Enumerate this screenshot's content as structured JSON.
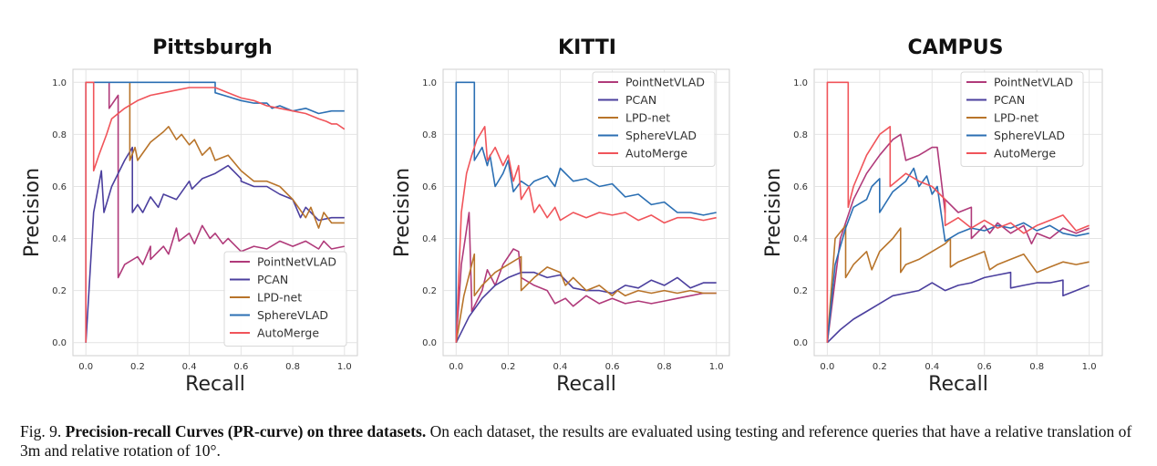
{
  "caption": {
    "label": "Fig. 9.",
    "title": "Precision-recall Curves (PR-curve) on three datasets.",
    "body": "On each dataset, the results are evaluated using testing and reference queries that have a relative translation of 3m and relative rotation of 10°."
  },
  "colors": {
    "PointNetVLAD": "#b03a7a",
    "PCAN": "#4b3f9e",
    "LPD-net": "#b8742a",
    "SphereVLAD": "#2b6fb3",
    "AutoMerge": "#f0545a"
  },
  "chart_data": [
    {
      "type": "line",
      "title": "Pittsburgh",
      "xlabel": "Recall",
      "ylabel": "Precision",
      "xlim": [
        0,
        1
      ],
      "ylim": [
        0,
        1
      ],
      "xticks": [
        "0.0",
        "0.2",
        "0.4",
        "0.6",
        "0.8",
        "1.0"
      ],
      "yticks": [
        "0.0",
        "0.2",
        "0.4",
        "0.6",
        "0.8",
        "1.0"
      ],
      "grid": true,
      "legend": "bottom-right",
      "series": [
        {
          "name": "PointNetVLAD",
          "x": [
            0.09,
            0.09,
            0.125,
            0.125,
            0.15,
            0.2,
            0.22,
            0.25,
            0.25,
            0.3,
            0.32,
            0.35,
            0.36,
            0.4,
            0.42,
            0.45,
            0.48,
            0.5,
            0.53,
            0.55,
            0.6,
            0.65,
            0.7,
            0.75,
            0.8,
            0.85,
            0.9,
            0.92,
            0.95,
            1.0
          ],
          "y": [
            1.0,
            0.9,
            0.95,
            0.25,
            0.3,
            0.33,
            0.3,
            0.37,
            0.32,
            0.37,
            0.34,
            0.44,
            0.39,
            0.42,
            0.38,
            0.45,
            0.4,
            0.42,
            0.38,
            0.4,
            0.35,
            0.37,
            0.36,
            0.39,
            0.37,
            0.39,
            0.36,
            0.39,
            0.36,
            0.37
          ]
        },
        {
          "name": "PCAN",
          "x": [
            0.0,
            0.03,
            0.06,
            0.07,
            0.1,
            0.15,
            0.18,
            0.18,
            0.2,
            0.22,
            0.25,
            0.28,
            0.3,
            0.35,
            0.4,
            0.41,
            0.45,
            0.5,
            0.55,
            0.6,
            0.6,
            0.65,
            0.7,
            0.75,
            0.8,
            0.83,
            0.85,
            0.9,
            0.95,
            1.0
          ],
          "y": [
            0.0,
            0.5,
            0.66,
            0.5,
            0.6,
            0.7,
            0.75,
            0.5,
            0.53,
            0.5,
            0.56,
            0.52,
            0.57,
            0.55,
            0.62,
            0.59,
            0.63,
            0.65,
            0.68,
            0.63,
            0.62,
            0.6,
            0.6,
            0.57,
            0.55,
            0.48,
            0.52,
            0.47,
            0.48,
            0.48
          ]
        },
        {
          "name": "LPD-net",
          "x": [
            0.17,
            0.17,
            0.19,
            0.2,
            0.25,
            0.3,
            0.32,
            0.35,
            0.37,
            0.4,
            0.42,
            0.45,
            0.48,
            0.5,
            0.55,
            0.6,
            0.65,
            0.7,
            0.75,
            0.8,
            0.85,
            0.87,
            0.9,
            0.92,
            0.95,
            1.0
          ],
          "y": [
            1.0,
            0.7,
            0.75,
            0.7,
            0.77,
            0.81,
            0.83,
            0.78,
            0.8,
            0.76,
            0.78,
            0.72,
            0.75,
            0.7,
            0.72,
            0.66,
            0.62,
            0.62,
            0.6,
            0.55,
            0.48,
            0.52,
            0.44,
            0.5,
            0.46,
            0.46
          ]
        },
        {
          "name": "SphereVLAD",
          "x": [
            0.0,
            0.0,
            0.5,
            0.5,
            0.6,
            0.65,
            0.7,
            0.72,
            0.75,
            0.8,
            0.85,
            0.9,
            0.95,
            1.0
          ],
          "y": [
            0.0,
            1.0,
            1.0,
            0.96,
            0.93,
            0.92,
            0.92,
            0.9,
            0.91,
            0.89,
            0.9,
            0.88,
            0.89,
            0.89
          ]
        },
        {
          "name": "AutoMerge",
          "x": [
            0.0,
            0.0,
            0.03,
            0.03,
            0.05,
            0.08,
            0.1,
            0.15,
            0.2,
            0.25,
            0.3,
            0.35,
            0.4,
            0.45,
            0.5,
            0.55,
            0.6,
            0.65,
            0.7,
            0.75,
            0.8,
            0.85,
            0.9,
            0.93,
            0.95,
            0.97,
            1.0
          ],
          "y": [
            0.0,
            1.0,
            1.0,
            0.66,
            0.72,
            0.8,
            0.86,
            0.9,
            0.93,
            0.95,
            0.96,
            0.97,
            0.98,
            0.98,
            0.98,
            0.96,
            0.94,
            0.93,
            0.91,
            0.9,
            0.89,
            0.88,
            0.86,
            0.85,
            0.84,
            0.84,
            0.82
          ]
        }
      ]
    },
    {
      "type": "line",
      "title": "KITTI",
      "xlabel": "Recall",
      "ylabel": "Precision",
      "xlim": [
        0,
        1
      ],
      "ylim": [
        0,
        1
      ],
      "xticks": [
        "0.0",
        "0.2",
        "0.4",
        "0.6",
        "0.8",
        "1.0"
      ],
      "yticks": [
        "0.0",
        "0.2",
        "0.4",
        "0.6",
        "0.8",
        "1.0"
      ],
      "grid": true,
      "legend": "top-right",
      "series": [
        {
          "name": "PointNetVLAD",
          "x": [
            0.0,
            0.02,
            0.05,
            0.06,
            0.06,
            0.1,
            0.12,
            0.15,
            0.18,
            0.22,
            0.24,
            0.25,
            0.3,
            0.35,
            0.38,
            0.42,
            0.45,
            0.5,
            0.55,
            0.6,
            0.65,
            0.7,
            0.75,
            0.8,
            0.85,
            0.9,
            0.95,
            1.0
          ],
          "y": [
            0.0,
            0.3,
            0.5,
            0.15,
            0.12,
            0.2,
            0.28,
            0.22,
            0.3,
            0.36,
            0.35,
            0.25,
            0.22,
            0.2,
            0.15,
            0.17,
            0.14,
            0.18,
            0.15,
            0.17,
            0.15,
            0.16,
            0.15,
            0.16,
            0.17,
            0.18,
            0.19,
            0.19
          ]
        },
        {
          "name": "PCAN",
          "x": [
            0.0,
            0.05,
            0.1,
            0.15,
            0.2,
            0.25,
            0.3,
            0.35,
            0.4,
            0.45,
            0.5,
            0.55,
            0.6,
            0.65,
            0.7,
            0.75,
            0.8,
            0.85,
            0.9,
            0.95,
            1.0
          ],
          "y": [
            0.0,
            0.1,
            0.17,
            0.22,
            0.25,
            0.27,
            0.27,
            0.25,
            0.26,
            0.21,
            0.2,
            0.2,
            0.19,
            0.22,
            0.21,
            0.24,
            0.22,
            0.25,
            0.21,
            0.23,
            0.23
          ]
        },
        {
          "name": "LPD-net",
          "x": [
            0.0,
            0.03,
            0.07,
            0.07,
            0.1,
            0.15,
            0.2,
            0.25,
            0.25,
            0.3,
            0.35,
            0.4,
            0.42,
            0.45,
            0.5,
            0.55,
            0.6,
            0.62,
            0.65,
            0.7,
            0.75,
            0.8,
            0.85,
            0.9,
            0.95,
            1.0
          ],
          "y": [
            0.0,
            0.18,
            0.34,
            0.18,
            0.22,
            0.27,
            0.3,
            0.33,
            0.2,
            0.25,
            0.29,
            0.27,
            0.22,
            0.25,
            0.2,
            0.22,
            0.18,
            0.2,
            0.18,
            0.2,
            0.19,
            0.2,
            0.19,
            0.2,
            0.19,
            0.19
          ]
        },
        {
          "name": "SphereVLAD",
          "x": [
            0.0,
            0.0,
            0.07,
            0.07,
            0.1,
            0.12,
            0.13,
            0.15,
            0.18,
            0.2,
            0.22,
            0.25,
            0.28,
            0.3,
            0.35,
            0.38,
            0.4,
            0.45,
            0.5,
            0.55,
            0.6,
            0.65,
            0.7,
            0.75,
            0.8,
            0.85,
            0.9,
            0.95,
            1.0
          ],
          "y": [
            0.0,
            1.0,
            1.0,
            0.7,
            0.75,
            0.68,
            0.72,
            0.6,
            0.65,
            0.7,
            0.58,
            0.62,
            0.6,
            0.62,
            0.64,
            0.6,
            0.67,
            0.62,
            0.63,
            0.6,
            0.61,
            0.56,
            0.57,
            0.53,
            0.54,
            0.5,
            0.5,
            0.49,
            0.5
          ]
        },
        {
          "name": "AutoMerge",
          "x": [
            0.0,
            0.02,
            0.04,
            0.06,
            0.08,
            0.11,
            0.12,
            0.15,
            0.18,
            0.2,
            0.22,
            0.24,
            0.25,
            0.28,
            0.3,
            0.32,
            0.35,
            0.38,
            0.4,
            0.45,
            0.5,
            0.55,
            0.6,
            0.65,
            0.7,
            0.75,
            0.8,
            0.85,
            0.9,
            0.95,
            1.0
          ],
          "y": [
            0.0,
            0.5,
            0.65,
            0.72,
            0.78,
            0.83,
            0.7,
            0.75,
            0.68,
            0.72,
            0.62,
            0.68,
            0.55,
            0.6,
            0.5,
            0.53,
            0.48,
            0.52,
            0.47,
            0.5,
            0.48,
            0.5,
            0.49,
            0.5,
            0.47,
            0.49,
            0.46,
            0.48,
            0.48,
            0.47,
            0.48
          ]
        }
      ]
    },
    {
      "type": "line",
      "title": "CAMPUS",
      "xlabel": "Recall",
      "ylabel": "Precision",
      "xlim": [
        0,
        1
      ],
      "ylim": [
        0,
        1
      ],
      "xticks": [
        "0.0",
        "0.2",
        "0.4",
        "0.6",
        "0.8",
        "1.0"
      ],
      "yticks": [
        "0.0",
        "0.2",
        "0.4",
        "0.6",
        "0.8",
        "1.0"
      ],
      "grid": true,
      "legend": "top-right",
      "series": [
        {
          "name": "PointNetVLAD",
          "x": [
            0.0,
            0.05,
            0.1,
            0.15,
            0.2,
            0.25,
            0.28,
            0.3,
            0.35,
            0.4,
            0.42,
            0.45,
            0.45,
            0.5,
            0.55,
            0.55,
            0.6,
            0.62,
            0.65,
            0.7,
            0.75,
            0.78,
            0.8,
            0.85,
            0.9,
            0.95,
            1.0
          ],
          "y": [
            0.0,
            0.4,
            0.55,
            0.65,
            0.72,
            0.78,
            0.8,
            0.7,
            0.72,
            0.75,
            0.75,
            0.5,
            0.55,
            0.5,
            0.52,
            0.4,
            0.45,
            0.42,
            0.46,
            0.42,
            0.45,
            0.38,
            0.42,
            0.4,
            0.44,
            0.42,
            0.44
          ]
        },
        {
          "name": "PCAN",
          "x": [
            0.0,
            0.05,
            0.1,
            0.15,
            0.2,
            0.25,
            0.3,
            0.35,
            0.4,
            0.45,
            0.5,
            0.55,
            0.6,
            0.65,
            0.7,
            0.7,
            0.75,
            0.8,
            0.85,
            0.9,
            0.9,
            0.95,
            1.0
          ],
          "y": [
            0.0,
            0.05,
            0.09,
            0.12,
            0.15,
            0.18,
            0.19,
            0.2,
            0.23,
            0.2,
            0.22,
            0.23,
            0.25,
            0.26,
            0.27,
            0.21,
            0.22,
            0.23,
            0.23,
            0.24,
            0.18,
            0.2,
            0.22
          ]
        },
        {
          "name": "LPD-net",
          "x": [
            0.0,
            0.03,
            0.07,
            0.07,
            0.1,
            0.15,
            0.17,
            0.2,
            0.25,
            0.28,
            0.28,
            0.3,
            0.35,
            0.4,
            0.45,
            0.47,
            0.47,
            0.5,
            0.55,
            0.6,
            0.62,
            0.65,
            0.7,
            0.75,
            0.8,
            0.85,
            0.9,
            0.95,
            1.0
          ],
          "y": [
            0.0,
            0.4,
            0.45,
            0.25,
            0.3,
            0.35,
            0.28,
            0.35,
            0.4,
            0.44,
            0.27,
            0.3,
            0.32,
            0.35,
            0.38,
            0.4,
            0.29,
            0.31,
            0.33,
            0.35,
            0.28,
            0.3,
            0.32,
            0.34,
            0.27,
            0.29,
            0.31,
            0.3,
            0.31
          ]
        },
        {
          "name": "SphereVLAD",
          "x": [
            0.0,
            0.03,
            0.07,
            0.1,
            0.15,
            0.17,
            0.2,
            0.2,
            0.25,
            0.3,
            0.33,
            0.35,
            0.38,
            0.4,
            0.42,
            0.45,
            0.5,
            0.55,
            0.6,
            0.65,
            0.7,
            0.75,
            0.8,
            0.85,
            0.9,
            0.95,
            1.0
          ],
          "y": [
            0.0,
            0.3,
            0.44,
            0.52,
            0.55,
            0.6,
            0.63,
            0.5,
            0.58,
            0.62,
            0.67,
            0.6,
            0.64,
            0.57,
            0.6,
            0.39,
            0.42,
            0.44,
            0.43,
            0.45,
            0.44,
            0.46,
            0.43,
            0.45,
            0.42,
            0.41,
            0.42
          ]
        },
        {
          "name": "AutoMerge",
          "x": [
            0.0,
            0.0,
            0.08,
            0.08,
            0.1,
            0.15,
            0.2,
            0.24,
            0.24,
            0.3,
            0.35,
            0.4,
            0.45,
            0.45,
            0.5,
            0.55,
            0.6,
            0.65,
            0.7,
            0.75,
            0.8,
            0.85,
            0.9,
            0.95,
            1.0
          ],
          "y": [
            0.0,
            1.0,
            1.0,
            0.52,
            0.6,
            0.72,
            0.8,
            0.83,
            0.6,
            0.65,
            0.62,
            0.6,
            0.55,
            0.45,
            0.48,
            0.44,
            0.47,
            0.44,
            0.46,
            0.42,
            0.45,
            0.47,
            0.49,
            0.43,
            0.45
          ]
        }
      ]
    }
  ]
}
